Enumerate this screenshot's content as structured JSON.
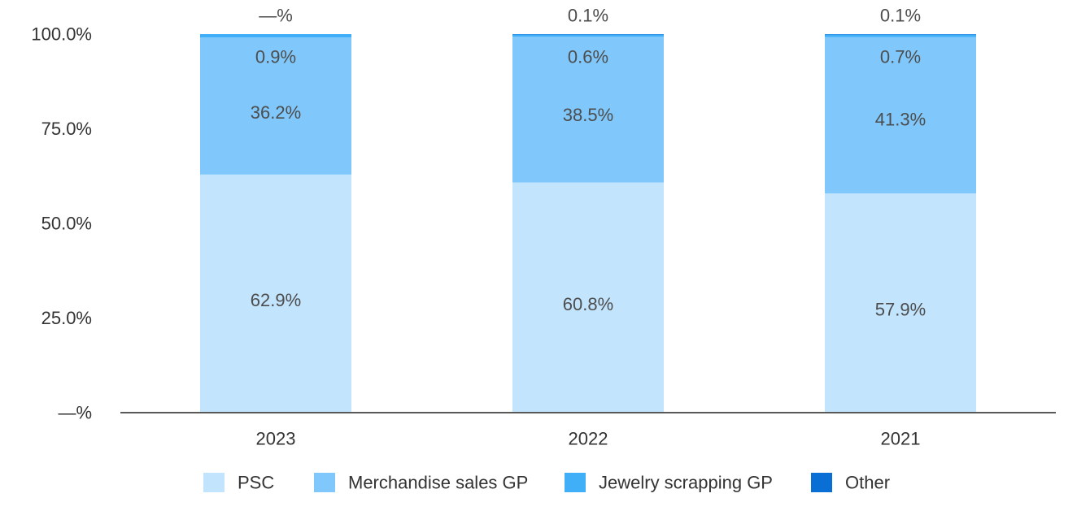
{
  "chart_data": {
    "type": "bar",
    "stacked": true,
    "categories": [
      "2023",
      "2022",
      "2021"
    ],
    "series": [
      {
        "name": "PSC",
        "color": "#c2e4fd",
        "values": [
          62.9,
          60.8,
          57.9
        ],
        "labels": [
          "62.9%",
          "60.8%",
          "57.9%"
        ]
      },
      {
        "name": "Merchandise sales GP",
        "color": "#80c8fc",
        "values": [
          36.2,
          38.5,
          41.3
        ],
        "labels": [
          "36.2%",
          "38.5%",
          "41.3%"
        ]
      },
      {
        "name": "Jewelry scrapping GP",
        "color": "#41aef8",
        "values": [
          0.9,
          0.6,
          0.7
        ],
        "labels": [
          "0.9%",
          "0.6%",
          "0.7%"
        ]
      },
      {
        "name": "Other",
        "color": "#0a6fd4",
        "values": [
          0.0,
          0.1,
          0.1
        ],
        "labels": [
          "—%",
          "0.1%",
          "0.1%"
        ]
      }
    ],
    "yticks": [
      "—%",
      "25.0%",
      "50.0%",
      "75.0%",
      "100.0%"
    ],
    "ytick_values": [
      0,
      25,
      50,
      75,
      100
    ],
    "ylim": [
      0,
      100
    ],
    "grid": false,
    "legend_position": "bottom",
    "axis_color": "#595959"
  }
}
